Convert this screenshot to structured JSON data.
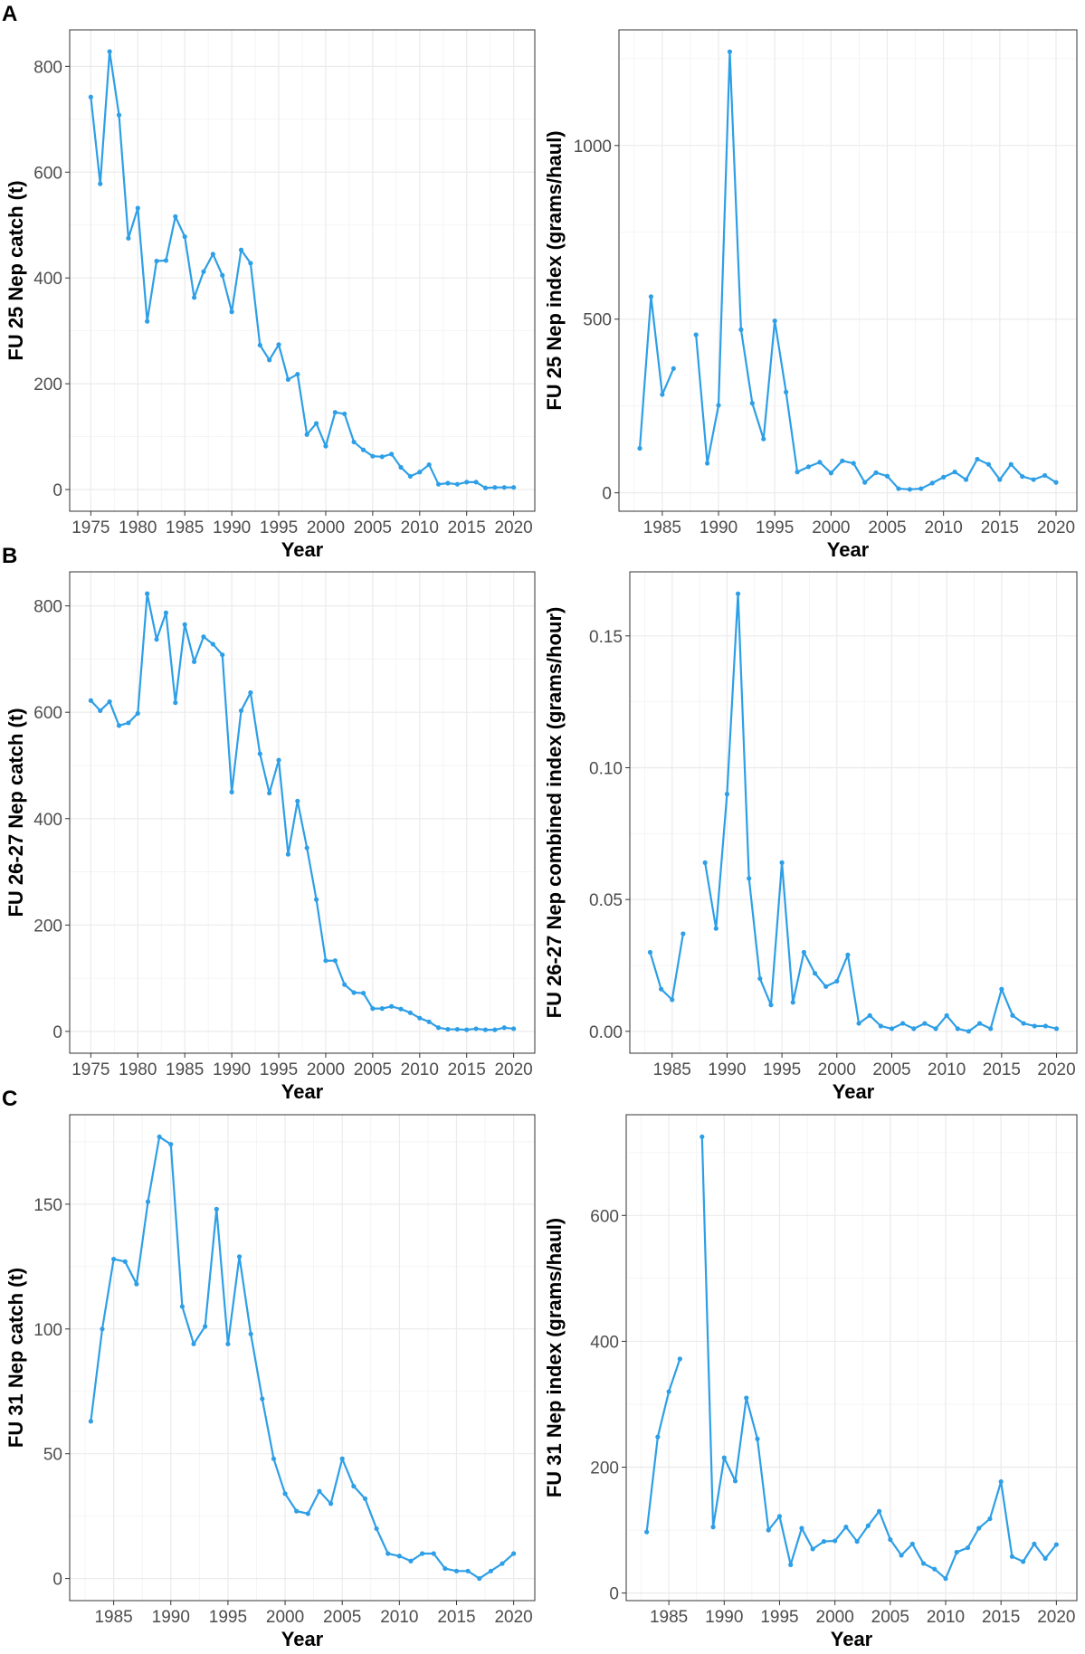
{
  "line_color": "#2e9fe6",
  "chart_data": [
    {
      "panel": "A",
      "type": "line",
      "xlabel": "Year",
      "ylabel": "FU 25 Nep catch (t)",
      "xlim": [
        1972.75,
        2022.25
      ],
      "ylim": [
        -41,
        869
      ],
      "grid": true,
      "xticks": [
        1975,
        1980,
        1985,
        1990,
        1995,
        2000,
        2005,
        2010,
        2015,
        2020
      ],
      "yticks": [
        0,
        200,
        400,
        600,
        800
      ],
      "ytick_labels": [
        "0",
        "200",
        "400",
        "600",
        "800"
      ],
      "x": [
        1975,
        1976,
        1977,
        1978,
        1979,
        1980,
        1981,
        1982,
        1983,
        1984,
        1985,
        1986,
        1987,
        1988,
        1989,
        1990,
        1991,
        1992,
        1993,
        1994,
        1995,
        1996,
        1997,
        1998,
        1999,
        2000,
        2001,
        2002,
        2003,
        2004,
        2005,
        2006,
        2007,
        2008,
        2009,
        2010,
        2011,
        2012,
        2013,
        2014,
        2015,
        2016,
        2017,
        2018,
        2019,
        2020
      ],
      "y": [
        742,
        578,
        828,
        708,
        475,
        532,
        318,
        432,
        433,
        516,
        478,
        363,
        412,
        445,
        405,
        336,
        453,
        428,
        273,
        245,
        274,
        208,
        218,
        104,
        125,
        82,
        146,
        143,
        90,
        75,
        63,
        62,
        67,
        42,
        25,
        33,
        47,
        10,
        12,
        10,
        14,
        14,
        3,
        4,
        4,
        4
      ]
    },
    {
      "panel": "A",
      "type": "line",
      "xlabel": "Year",
      "ylabel": "FU 25 Nep index (grams/haul)",
      "xlim": [
        1981.15,
        2021.85
      ],
      "ylim": [
        -53,
        1333
      ],
      "grid": true,
      "xticks": [
        1985,
        1990,
        1995,
        2000,
        2005,
        2010,
        2015,
        2020
      ],
      "yticks": [
        0,
        500,
        1000
      ],
      "ytick_labels": [
        "0",
        "500",
        "1000"
      ],
      "x": [
        1983,
        1984,
        1985,
        1986,
        1987,
        1988,
        1989,
        1990,
        1991,
        1992,
        1993,
        1994,
        1995,
        1996,
        1997,
        1998,
        1999,
        2000,
        2001,
        2002,
        2003,
        2004,
        2005,
        2006,
        2007,
        2008,
        2009,
        2010,
        2011,
        2012,
        2013,
        2014,
        2015,
        2016,
        2017,
        2018,
        2019,
        2020
      ],
      "y": [
        128,
        565,
        283,
        358,
        null,
        455,
        85,
        252,
        1270,
        470,
        258,
        155,
        495,
        290,
        60,
        75,
        88,
        57,
        92,
        85,
        30,
        58,
        48,
        12,
        10,
        12,
        28,
        45,
        60,
        38,
        97,
        82,
        38,
        82,
        47,
        38,
        50,
        30
      ]
    },
    {
      "panel": "B",
      "type": "line",
      "xlabel": "Year",
      "ylabel": "FU 26-27 Nep catch (t)",
      "xlim": [
        1972.75,
        2022.25
      ],
      "ylim": [
        -41,
        864
      ],
      "grid": true,
      "xticks": [
        1975,
        1980,
        1985,
        1990,
        1995,
        2000,
        2005,
        2010,
        2015,
        2020
      ],
      "yticks": [
        0,
        200,
        400,
        600,
        800
      ],
      "ytick_labels": [
        "0",
        "200",
        "400",
        "600",
        "800"
      ],
      "x": [
        1975,
        1976,
        1977,
        1978,
        1979,
        1980,
        1981,
        1982,
        1983,
        1984,
        1985,
        1986,
        1987,
        1988,
        1989,
        1990,
        1991,
        1992,
        1993,
        1994,
        1995,
        1996,
        1997,
        1998,
        1999,
        2000,
        2001,
        2002,
        2003,
        2004,
        2005,
        2006,
        2007,
        2008,
        2009,
        2010,
        2011,
        2012,
        2013,
        2014,
        2015,
        2016,
        2017,
        2018,
        2019,
        2020
      ],
      "y": [
        622,
        603,
        620,
        575,
        580,
        598,
        823,
        737,
        787,
        618,
        765,
        695,
        742,
        728,
        708,
        450,
        603,
        637,
        522,
        448,
        510,
        333,
        433,
        345,
        248,
        133,
        133,
        88,
        73,
        72,
        43,
        43,
        47,
        42,
        35,
        25,
        18,
        7,
        4,
        4,
        3,
        5,
        3,
        3,
        7,
        5
      ]
    },
    {
      "panel": "B",
      "type": "line",
      "xlabel": "Year",
      "ylabel": "FU 26-27 Nep combined index (grams/hour)",
      "xlim": [
        1981.15,
        2021.85
      ],
      "ylim": [
        -0.0083,
        0.1743
      ],
      "grid": true,
      "xticks": [
        1985,
        1990,
        1995,
        2000,
        2005,
        2010,
        2015,
        2020
      ],
      "yticks": [
        0,
        0.05,
        0.1,
        0.15
      ],
      "ytick_labels": [
        "0.00",
        "0.05",
        "0.10",
        "0.15"
      ],
      "x": [
        1983,
        1984,
        1985,
        1986,
        1987,
        1988,
        1989,
        1990,
        1991,
        1992,
        1993,
        1994,
        1995,
        1996,
        1997,
        1998,
        1999,
        2000,
        2001,
        2002,
        2003,
        2004,
        2005,
        2006,
        2007,
        2008,
        2009,
        2010,
        2011,
        2012,
        2013,
        2014,
        2015,
        2016,
        2017,
        2018,
        2019,
        2020
      ],
      "y": [
        0.03,
        0.016,
        0.012,
        0.037,
        null,
        0.064,
        0.039,
        0.09,
        0.166,
        0.058,
        0.02,
        0.01,
        0.064,
        0.011,
        0.03,
        0.022,
        0.017,
        0.019,
        0.029,
        0.003,
        0.006,
        0.002,
        0.001,
        0.003,
        0.001,
        0.003,
        0.001,
        0.006,
        0.001,
        0.0,
        0.003,
        0.001,
        0.016,
        0.006,
        0.003,
        0.002,
        0.002,
        0.001
      ]
    },
    {
      "panel": "C",
      "type": "line",
      "xlabel": "Year",
      "ylabel": "FU 31 Nep catch (t)",
      "xlim": [
        1981.15,
        2021.85
      ],
      "ylim": [
        -8.85,
        185.85
      ],
      "grid": true,
      "xticks": [
        1985,
        1990,
        1995,
        2000,
        2005,
        2010,
        2015,
        2020
      ],
      "yticks": [
        0,
        50,
        100,
        150
      ],
      "ytick_labels": [
        "0",
        "50",
        "100",
        "150"
      ],
      "x": [
        1983,
        1984,
        1985,
        1986,
        1987,
        1988,
        1989,
        1990,
        1991,
        1992,
        1993,
        1994,
        1995,
        1996,
        1997,
        1998,
        1999,
        2000,
        2001,
        2002,
        2003,
        2004,
        2005,
        2006,
        2007,
        2008,
        2009,
        2010,
        2011,
        2012,
        2013,
        2014,
        2015,
        2016,
        2017,
        2018,
        2019,
        2020
      ],
      "y": [
        63,
        100,
        128,
        127,
        118,
        151,
        177,
        174,
        109,
        94,
        101,
        148,
        94,
        129,
        98,
        72,
        48,
        34,
        27,
        26,
        35,
        30,
        48,
        37,
        32,
        20,
        10,
        9,
        7,
        10,
        10,
        4,
        3,
        3,
        0,
        3,
        6,
        10
      ]
    },
    {
      "panel": "C",
      "type": "line",
      "xlabel": "Year",
      "ylabel": "FU 31 Nep index (grams/haul)",
      "xlim": [
        1981.15,
        2021.85
      ],
      "ylim": [
        -12,
        760
      ],
      "grid": true,
      "xticks": [
        1985,
        1990,
        1995,
        2000,
        2005,
        2010,
        2015,
        2020
      ],
      "yticks": [
        0,
        200,
        400,
        600
      ],
      "ytick_labels": [
        "0",
        "200",
        "400",
        "600"
      ],
      "x": [
        1983,
        1984,
        1985,
        1986,
        1987,
        1988,
        1989,
        1990,
        1991,
        1992,
        1993,
        1994,
        1995,
        1996,
        1997,
        1998,
        1999,
        2000,
        2001,
        2002,
        2003,
        2004,
        2005,
        2006,
        2007,
        2008,
        2009,
        2010,
        2011,
        2012,
        2013,
        2014,
        2015,
        2016,
        2017,
        2018,
        2019,
        2020
      ],
      "y": [
        97,
        248,
        320,
        372,
        null,
        725,
        105,
        215,
        178,
        310,
        245,
        100,
        122,
        45,
        103,
        70,
        82,
        83,
        105,
        82,
        107,
        130,
        85,
        60,
        78,
        47,
        38,
        23,
        65,
        72,
        103,
        118,
        177,
        58,
        50,
        78,
        55,
        77
      ]
    }
  ]
}
